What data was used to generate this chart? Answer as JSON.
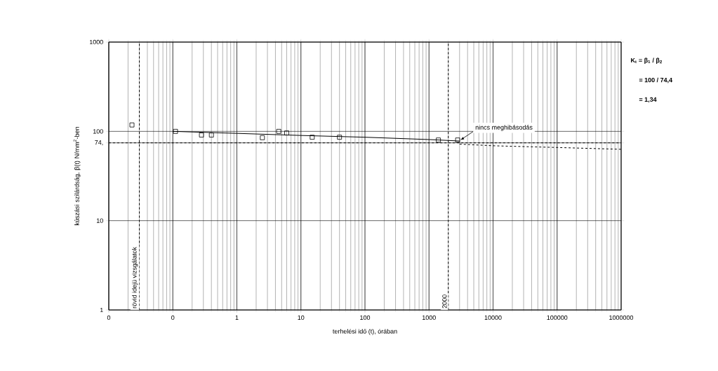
{
  "chart_data": {
    "type": "scatter",
    "xlabel": "terhelési idő (t), órában",
    "ylabel": "kúszási szilárdság, β(t) N/mm$^{2}$-ben",
    "log": "xy",
    "grid": true,
    "xlim": [
      0.01,
      1000000
    ],
    "ylim": [
      1,
      1000
    ],
    "xticks": [
      {
        "value": 0.01,
        "label": "0"
      },
      {
        "value": 0.1,
        "label": "0"
      },
      1,
      10,
      100,
      1000,
      10000,
      100000,
      1000000
    ],
    "yticks": [
      1,
      10,
      {
        "value": 74.4,
        "label": "74,"
      },
      100,
      1000
    ],
    "series": [
      {
        "marker": "square",
        "color": "#000000",
        "x": [
          0.023,
          0.11,
          0.28,
          0.4,
          2.5,
          4.5,
          6,
          15,
          40,
          1400,
          2800
        ],
        "values": [
          118,
          100,
          91,
          91,
          85,
          100,
          96,
          86,
          86,
          80,
          80
        ]
      },
      {
        "type": "line",
        "line_style": "solid",
        "marker": "none",
        "color": "#000000",
        "x": [
          0.1,
          1,
          10,
          100,
          1000,
          3000
        ],
        "values": [
          100,
          95,
          90,
          86,
          81,
          78
        ]
      },
      {
        "type": "line",
        "line_style": "dashed",
        "marker": "none",
        "color": "#000000",
        "x": [
          3000,
          10000,
          100000,
          1000000
        ],
        "values": [
          72,
          69,
          66,
          63
        ]
      }
    ],
    "ref_lines": [
      {
        "axis": "y",
        "value": 74.4,
        "line_style": "dashed",
        "color": "#000000"
      },
      {
        "axis": "x",
        "value": 2000,
        "label": "2000",
        "line_style": "dashed",
        "color": "#000000"
      },
      {
        "axis": "x",
        "value": 0.03,
        "label": "rövid idejü vizsgálatok",
        "line_style": "dashed",
        "color": "#000000"
      }
    ],
    "annotations": [
      {
        "text": "nincs meghibásodás",
        "x": 2800,
        "y": 80
      },
      "K$_{t}$ = β$_{1}$ / β$_{2}$",
      "= 100 / 74,4",
      "= 1,34"
    ]
  }
}
